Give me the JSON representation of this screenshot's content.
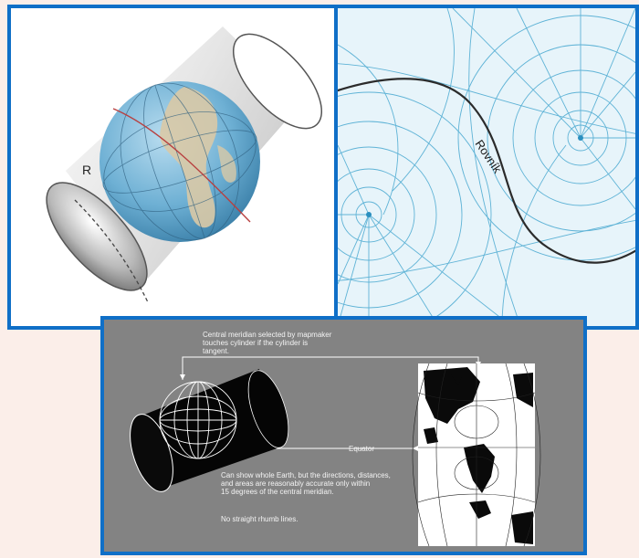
{
  "panels": {
    "cylinder": {
      "radius_label": "R"
    },
    "transverse_mercator": {
      "equator_label": "Rovník"
    },
    "diagram": {
      "meridian_note": "Central meridian selected by mapmaker\ntouches cylinder if the cylinder is\ntangent.",
      "equator_label": "Equator",
      "accuracy_note": "Can show whole Earth, but the directions, distances,\nand areas are reasonably accurate only within\n15 degrees of the central meridian.",
      "rhumb_note": "No straight rhumb lines."
    }
  },
  "colors": {
    "frame": "#0f6fc7",
    "background": "#fbeee9",
    "graticule": "#5fb3d6",
    "diagram_bg": "#838383"
  }
}
